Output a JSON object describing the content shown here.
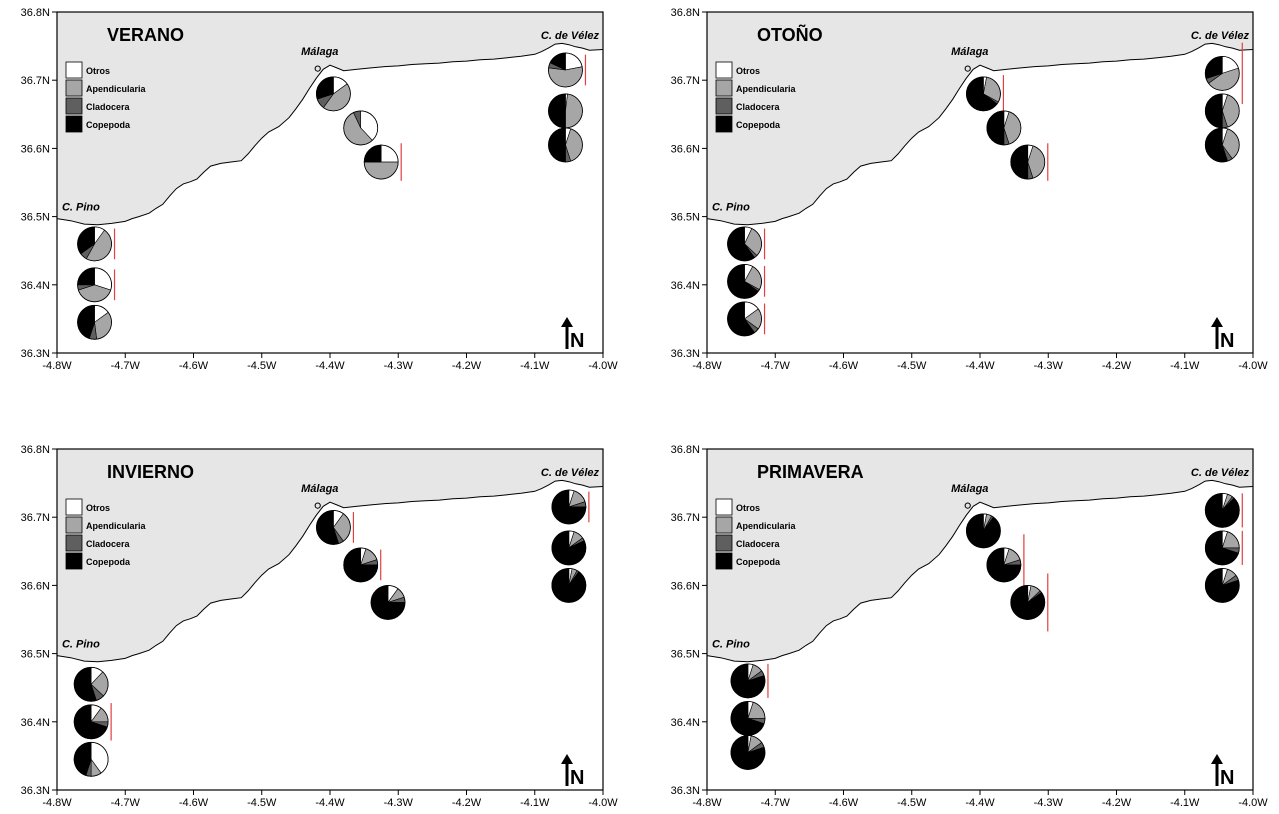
{
  "colors": {
    "land": "#e6e6e6",
    "Otros": "#ffffff",
    "Apendicularia": "#a6a6a6",
    "Cladocera": "#5f5f5f",
    "Copepoda": "#000000",
    "bar": "#e0403f"
  },
  "axes": {
    "x_ticks": [
      "-4.8W",
      "-4.7W",
      "-4.6W",
      "-4.5W",
      "-4.4W",
      "-4.3W",
      "-4.2W",
      "-4.1W",
      "-4.0W"
    ],
    "y_ticks": [
      "36.3N",
      "36.4N",
      "36.5N",
      "36.6N",
      "36.7N",
      "36.8N"
    ],
    "lon_range": [
      -4.8,
      -4.0
    ],
    "lat_range": [
      36.3,
      36.8
    ]
  },
  "labels": {
    "malaga": "Málaga",
    "pino": "C. Pino",
    "velez": "C. de Vélez",
    "north": "N"
  },
  "legend": [
    "Otros",
    "Apendicularia",
    "Cladocera",
    "Copepoda"
  ],
  "chart_data": [
    {
      "type": "pie",
      "season": "VERANO",
      "stations": [
        {
          "lon": -4.745,
          "lat": 36.46,
          "values": {
            "Otros": 0.1,
            "Apendicularia": 0.48,
            "Cladocera": 0.07,
            "Copepoda": 0.35
          },
          "bar": 0.045
        },
        {
          "lon": -4.745,
          "lat": 36.4,
          "values": {
            "Otros": 0.3,
            "Apendicularia": 0.4,
            "Cladocera": 0.05,
            "Copepoda": 0.25
          },
          "bar": 0.045
        },
        {
          "lon": -4.745,
          "lat": 36.345,
          "values": {
            "Otros": 0.15,
            "Apendicularia": 0.33,
            "Cladocera": 0.07,
            "Copepoda": 0.45
          },
          "bar": 0
        },
        {
          "lon": -4.395,
          "lat": 36.68,
          "values": {
            "Otros": 0.15,
            "Apendicularia": 0.45,
            "Cladocera": 0.1,
            "Copepoda": 0.3
          },
          "bar": 0
        },
        {
          "lon": -4.355,
          "lat": 36.63,
          "values": {
            "Otros": 0.38,
            "Apendicularia": 0.55,
            "Cladocera": 0.07,
            "Copepoda": 0.0
          },
          "bar": 0
        },
        {
          "lon": -4.325,
          "lat": 36.58,
          "values": {
            "Otros": 0.25,
            "Apendicularia": 0.5,
            "Cladocera": 0.0,
            "Copepoda": 0.25
          },
          "bar": 0.055
        },
        {
          "lon": -4.055,
          "lat": 36.715,
          "values": {
            "Otros": 0.22,
            "Apendicularia": 0.55,
            "Cladocera": 0.05,
            "Copepoda": 0.18
          },
          "bar": 0.045
        },
        {
          "lon": -4.055,
          "lat": 36.655,
          "values": {
            "Otros": 0.02,
            "Apendicularia": 0.48,
            "Cladocera": 0.0,
            "Copepoda": 0.5
          },
          "bar": 0
        },
        {
          "lon": -4.055,
          "lat": 36.605,
          "values": {
            "Otros": 0.05,
            "Apendicularia": 0.4,
            "Cladocera": 0.05,
            "Copepoda": 0.5
          },
          "bar": 0
        }
      ]
    },
    {
      "type": "pie",
      "season": "OTOÑO",
      "stations": [
        {
          "lon": -4.745,
          "lat": 36.46,
          "values": {
            "Otros": 0.07,
            "Apendicularia": 0.3,
            "Cladocera": 0.03,
            "Copepoda": 0.6
          },
          "bar": 0.045
        },
        {
          "lon": -4.745,
          "lat": 36.405,
          "values": {
            "Otros": 0.08,
            "Apendicularia": 0.25,
            "Cladocera": 0.02,
            "Copepoda": 0.65
          },
          "bar": 0.045
        },
        {
          "lon": -4.745,
          "lat": 36.35,
          "values": {
            "Otros": 0.15,
            "Apendicularia": 0.2,
            "Cladocera": 0.05,
            "Copepoda": 0.6
          },
          "bar": 0.045
        },
        {
          "lon": -4.395,
          "lat": 36.68,
          "values": {
            "Otros": 0.03,
            "Apendicularia": 0.3,
            "Cladocera": 0.02,
            "Copepoda": 0.65
          },
          "bar": 0.055
        },
        {
          "lon": -4.365,
          "lat": 36.63,
          "values": {
            "Otros": 0.05,
            "Apendicularia": 0.4,
            "Cladocera": 0.05,
            "Copepoda": 0.5
          },
          "bar": 0
        },
        {
          "lon": -4.33,
          "lat": 36.58,
          "values": {
            "Otros": 0.05,
            "Apendicularia": 0.4,
            "Cladocera": 0.05,
            "Copepoda": 0.5
          },
          "bar": 0.055
        },
        {
          "lon": -4.045,
          "lat": 36.71,
          "values": {
            "Otros": 0.2,
            "Apendicularia": 0.45,
            "Cladocera": 0.05,
            "Copepoda": 0.3
          },
          "bar": 0.09
        },
        {
          "lon": -4.045,
          "lat": 36.655,
          "values": {
            "Otros": 0.05,
            "Apendicularia": 0.4,
            "Cladocera": 0.05,
            "Copepoda": 0.5
          },
          "bar": 0
        },
        {
          "lon": -4.045,
          "lat": 36.605,
          "values": {
            "Otros": 0.05,
            "Apendicularia": 0.35,
            "Cladocera": 0.05,
            "Copepoda": 0.55
          },
          "bar": 0
        }
      ]
    },
    {
      "type": "pie",
      "season": "INVIERNO",
      "stations": [
        {
          "lon": -4.75,
          "lat": 36.455,
          "values": {
            "Otros": 0.12,
            "Apendicularia": 0.25,
            "Cladocera": 0.08,
            "Copepoda": 0.55
          },
          "bar": 0
        },
        {
          "lon": -4.75,
          "lat": 36.4,
          "values": {
            "Otros": 0.1,
            "Apendicularia": 0.15,
            "Cladocera": 0.05,
            "Copepoda": 0.7
          },
          "bar": 0.055
        },
        {
          "lon": -4.75,
          "lat": 36.345,
          "values": {
            "Otros": 0.4,
            "Apendicularia": 0.1,
            "Cladocera": 0.05,
            "Copepoda": 0.45
          },
          "bar": 0
        },
        {
          "lon": -4.395,
          "lat": 36.685,
          "values": {
            "Otros": 0.1,
            "Apendicularia": 0.3,
            "Cladocera": 0.05,
            "Copepoda": 0.55
          },
          "bar": 0.045
        },
        {
          "lon": -4.355,
          "lat": 36.63,
          "values": {
            "Otros": 0.05,
            "Apendicularia": 0.15,
            "Cladocera": 0.05,
            "Copepoda": 0.75
          },
          "bar": 0.045
        },
        {
          "lon": -4.315,
          "lat": 36.575,
          "values": {
            "Otros": 0.1,
            "Apendicularia": 0.1,
            "Cladocera": 0.05,
            "Copepoda": 0.75
          },
          "bar": 0
        },
        {
          "lon": -4.05,
          "lat": 36.715,
          "values": {
            "Otros": 0.05,
            "Apendicularia": 0.15,
            "Cladocera": 0.05,
            "Copepoda": 0.75
          },
          "bar": 0.045
        },
        {
          "lon": -4.05,
          "lat": 36.655,
          "values": {
            "Otros": 0.05,
            "Apendicularia": 0.1,
            "Cladocera": 0.03,
            "Copepoda": 0.82
          },
          "bar": 0
        },
        {
          "lon": -4.05,
          "lat": 36.6,
          "values": {
            "Otros": 0.03,
            "Apendicularia": 0.05,
            "Cladocera": 0.02,
            "Copepoda": 0.9
          },
          "bar": 0
        }
      ]
    },
    {
      "type": "pie",
      "season": "PRIMAVERA",
      "stations": [
        {
          "lon": -4.74,
          "lat": 36.46,
          "values": {
            "Otros": 0.05,
            "Apendicularia": 0.1,
            "Cladocera": 0.05,
            "Copepoda": 0.8
          },
          "bar": 0.05
        },
        {
          "lon": -4.74,
          "lat": 36.405,
          "values": {
            "Otros": 0.05,
            "Apendicularia": 0.2,
            "Cladocera": 0.05,
            "Copepoda": 0.7
          },
          "bar": 0
        },
        {
          "lon": -4.74,
          "lat": 36.355,
          "values": {
            "Otros": 0.03,
            "Apendicularia": 0.12,
            "Cladocera": 0.05,
            "Copepoda": 0.8
          },
          "bar": 0
        },
        {
          "lon": -4.395,
          "lat": 36.68,
          "values": {
            "Otros": 0.03,
            "Apendicularia": 0.05,
            "Cladocera": 0.02,
            "Copepoda": 0.9
          },
          "bar": 0
        },
        {
          "lon": -4.365,
          "lat": 36.63,
          "values": {
            "Otros": 0.05,
            "Apendicularia": 0.15,
            "Cladocera": 0.05,
            "Copepoda": 0.75
          },
          "bar": 0.09
        },
        {
          "lon": -4.33,
          "lat": 36.575,
          "values": {
            "Otros": 0.03,
            "Apendicularia": 0.1,
            "Cladocera": 0.02,
            "Copepoda": 0.85
          },
          "bar": 0.085
        },
        {
          "lon": -4.045,
          "lat": 36.71,
          "values": {
            "Otros": 0.05,
            "Apendicularia": 0.05,
            "Cladocera": 0.02,
            "Copepoda": 0.88
          },
          "bar": 0.05
        },
        {
          "lon": -4.045,
          "lat": 36.655,
          "values": {
            "Otros": 0.05,
            "Apendicularia": 0.2,
            "Cladocera": 0.05,
            "Copepoda": 0.7
          },
          "bar": 0.05
        },
        {
          "lon": -4.045,
          "lat": 36.6,
          "values": {
            "Otros": 0.05,
            "Apendicularia": 0.1,
            "Cladocera": 0.05,
            "Copepoda": 0.8
          },
          "bar": 0
        }
      ]
    }
  ]
}
